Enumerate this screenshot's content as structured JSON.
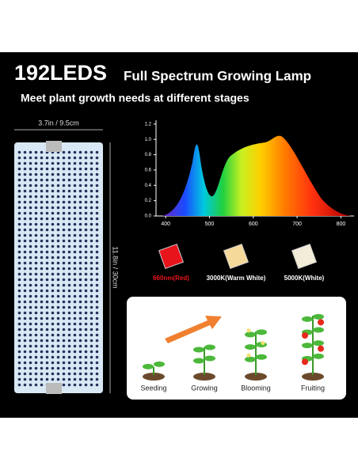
{
  "header": {
    "title": "192LEDS",
    "subtitle": "Full Spectrum Growing Lamp",
    "tagline": "Meet plant growth needs at different stages"
  },
  "panel": {
    "width_label": "3.7in / 9.5cm",
    "height_label": "11.8in / 30cm"
  },
  "spectrum": {
    "xlim": [
      378,
      830
    ],
    "ylim": [
      0,
      1.25
    ],
    "xticks": [
      400,
      500,
      600,
      700,
      800
    ],
    "yticks": [
      {
        "value": 0,
        "label": "0.0"
      },
      {
        "value": 0.2,
        "label": "0.2"
      },
      {
        "value": 0.4,
        "label": "0.4"
      },
      {
        "value": 0.6,
        "label": "0.6"
      },
      {
        "value": 0.8,
        "label": "0.8"
      },
      {
        "value": 1,
        "label": "1.0"
      },
      {
        "value": 1.2,
        "label": "1.2"
      }
    ]
  },
  "leds": [
    {
      "label": "660nm(Red)",
      "color": "#e8141c"
    },
    {
      "label": "3000K(Warm White)",
      "color": "#f5d99a"
    },
    {
      "label": "5000K(White)",
      "color": "#f3ecd8"
    }
  ],
  "stages": [
    "Seeding",
    "Growing",
    "Blooming",
    "Fruiting"
  ]
}
